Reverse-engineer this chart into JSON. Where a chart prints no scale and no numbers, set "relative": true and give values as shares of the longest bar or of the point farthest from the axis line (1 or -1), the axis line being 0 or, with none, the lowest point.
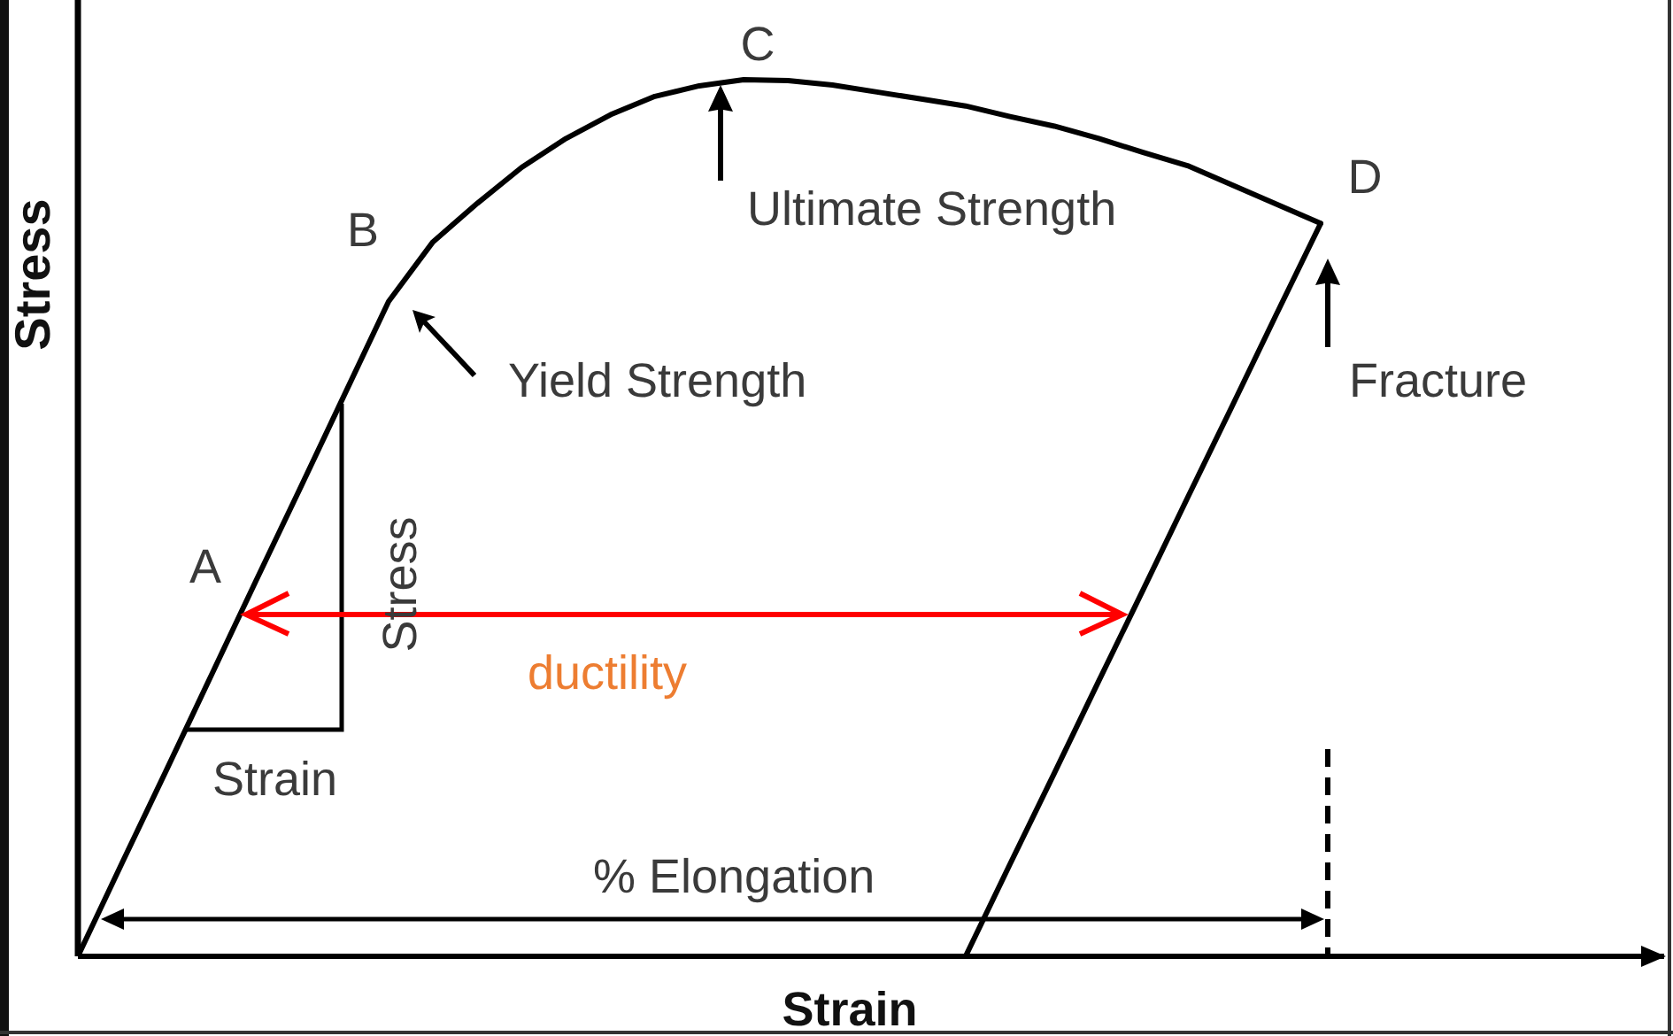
{
  "chart_data": {
    "type": "line",
    "xlabel": "Strain",
    "ylabel": "Stress",
    "relative": true,
    "categories": [
      null,
      null,
      null,
      null,
      null,
      null,
      null,
      null,
      null,
      null,
      null,
      null,
      null,
      null,
      null,
      null,
      null,
      null,
      null,
      null,
      null,
      null,
      null,
      null,
      null,
      null,
      null,
      null,
      null
    ],
    "series": [
      {
        "color": "#000000",
        "values": [
          0,
          0.107,
          0.213,
          0.32,
          0.427,
          0.533,
          0.64,
          0.747,
          0.815,
          0.859,
          0.9,
          0.933,
          0.96,
          0.981,
          0.993,
          1.0,
          0.999,
          0.994,
          0.986,
          0.978,
          0.97,
          0.958,
          0.947,
          0.933,
          0.917,
          0.902,
          0.88,
          0.858,
          0.836
        ]
      },
      {
        "color": "#000000",
        "values": [
          null,
          null,
          null,
          null,
          null,
          null,
          null,
          null,
          null,
          null,
          null,
          null,
          null,
          null,
          null,
          null,
          null,
          null,
          null,
          null,
          0,
          0.105,
          0.209,
          0.314,
          0.418,
          0.523,
          0.627,
          0.732,
          0.836
        ]
      }
    ],
    "annotations": [
      "A",
      "B",
      "C",
      "D",
      "Ultimate Strength",
      "Yield Strength",
      "Fracture",
      "ductility",
      "Stress",
      "Strain",
      "% Elongation"
    ]
  }
}
